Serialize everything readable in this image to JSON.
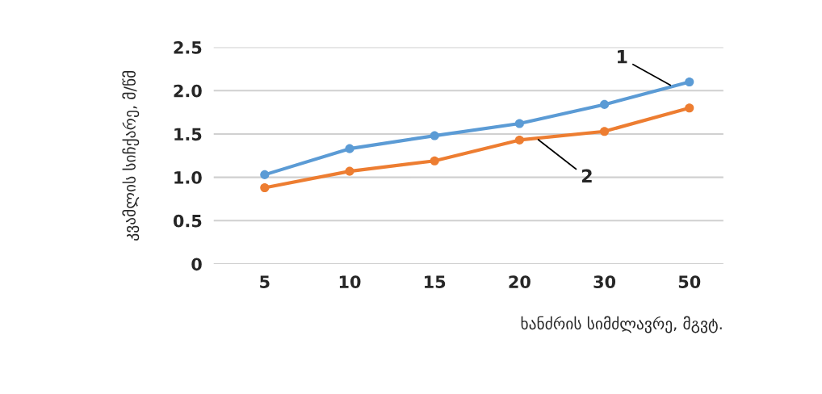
{
  "chart_data": {
    "type": "line",
    "xlabel": "ხანძრის სიმძლავრე, მგვტ.",
    "ylabel": "კვამლის სიჩქარე, მ/წმ",
    "categories": [
      "5",
      "10",
      "15",
      "20",
      "30",
      "50"
    ],
    "series": [
      {
        "name": "1",
        "color": "#5b9bd5",
        "values": [
          1.03,
          1.33,
          1.48,
          1.62,
          1.84,
          2.1
        ]
      },
      {
        "name": "2",
        "color": "#ed7d31",
        "values": [
          0.88,
          1.07,
          1.19,
          1.43,
          1.53,
          1.8
        ]
      }
    ],
    "ylim": [
      0,
      2.5
    ],
    "yticks": [
      0,
      0.5,
      {
        "value": 1,
        "label": "1.0"
      },
      1.5,
      {
        "value": 2,
        "label": "2.0"
      },
      2.5
    ],
    "grid": "y",
    "marker": "circle",
    "line_style": "solid",
    "legend": false
  }
}
